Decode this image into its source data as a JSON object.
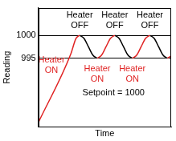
{
  "chart_data": {
    "type": "line",
    "x_label": "Time",
    "y_label": "Reading",
    "x": [
      0,
      2.6,
      3.0,
      3.3,
      3.65,
      4.0,
      4.35,
      4.7,
      5.05,
      5.4,
      5.75,
      6.1,
      6.45,
      6.8,
      7.15,
      7.5,
      7.85,
      8.2,
      8.55,
      8.9,
      9.25,
      9.6,
      9.95,
      10.3,
      10.6
    ],
    "series": [
      {
        "color": "#e02424",
        "values": [
          981,
          996,
          999.3,
          1000,
          null,
          null,
          null,
          995,
          995.7,
          997.5,
          999.3,
          1000,
          null,
          null,
          null,
          995,
          995.7,
          997.5,
          999.3,
          1000,
          null,
          null,
          null,
          995,
          995.5
        ]
      },
      {
        "color": "#000000",
        "values": [
          null,
          null,
          null,
          1000,
          999.3,
          997.5,
          995.7,
          995,
          null,
          null,
          null,
          1000,
          999.3,
          997.5,
          995.7,
          995,
          null,
          null,
          null,
          1000,
          999.3,
          997.5,
          995.7,
          995,
          null
        ]
      }
    ],
    "xlim": [
      0,
      10.6
    ],
    "ylim": [
      980,
      1006
    ],
    "yticks": [
      995,
      1000
    ],
    "grid": true,
    "tick_labels": "y",
    "annotations": [
      {
        "text": [
          "Heater",
          "OFF"
        ],
        "x": 3.3,
        "y": 1003.3,
        "color": "#000000"
      },
      {
        "text": [
          "Heater",
          "OFF"
        ],
        "x": 6.1,
        "y": 1003.3,
        "color": "#000000"
      },
      {
        "text": [
          "Heater",
          "OFF"
        ],
        "x": 8.9,
        "y": 1003.3,
        "color": "#000000"
      },
      {
        "text": [
          "Heater",
          "ON"
        ],
        "x": 1.05,
        "y": 993.5,
        "color": "#e02424"
      },
      {
        "text": [
          "Heater",
          "ON"
        ],
        "x": 4.7,
        "y": 991.5,
        "color": "#e02424"
      },
      {
        "text": [
          "Heater",
          "ON"
        ],
        "x": 7.5,
        "y": 991.5,
        "color": "#e02424"
      },
      {
        "text": "Setpoint = 1000",
        "x": 6.0,
        "y": 987.5,
        "color": "#000000"
      }
    ]
  }
}
